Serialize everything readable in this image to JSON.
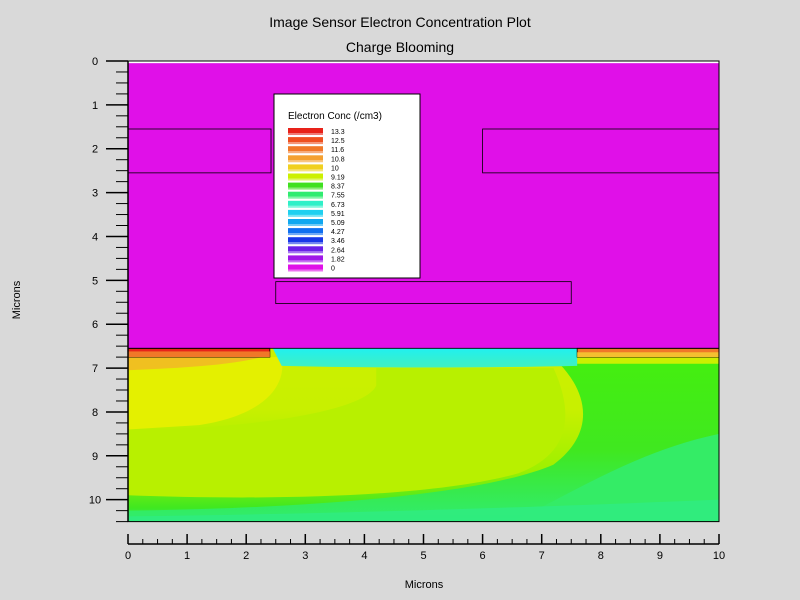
{
  "chart_data": {
    "type": "heatmap",
    "title": "Image Sensor Electron Concentration Plot",
    "subtitle": "Charge Blooming",
    "xlabel": "Microns",
    "ylabel": "Microns",
    "xlim": [
      0,
      10
    ],
    "ylim": [
      0,
      10.6
    ],
    "y_inverted": true,
    "x_ticks": [
      0,
      1,
      2,
      3,
      4,
      5,
      6,
      7,
      8,
      9,
      10
    ],
    "y_ticks": [
      0,
      1,
      2,
      3,
      4,
      5,
      6,
      7,
      8,
      9,
      10
    ],
    "legend": {
      "title": "Electron Conc (/cm3)",
      "placement": "top-center",
      "entries": [
        {
          "label": "13.3",
          "color": "#e8221a"
        },
        {
          "label": "12.5",
          "color": "#ee5020"
        },
        {
          "label": "11.6",
          "color": "#f07828"
        },
        {
          "label": "10.8",
          "color": "#f4a030"
        },
        {
          "label": "10",
          "color": "#f0d020"
        },
        {
          "label": "9.19",
          "color": "#ccf000"
        },
        {
          "label": "8.37",
          "color": "#40e020"
        },
        {
          "label": "7.55",
          "color": "#30ec70"
        },
        {
          "label": "6.73",
          "color": "#30f0c8"
        },
        {
          "label": "5.91",
          "color": "#20d0f0"
        },
        {
          "label": "5.09",
          "color": "#10a8f0"
        },
        {
          "label": "4.27",
          "color": "#1070f0"
        },
        {
          "label": "3.46",
          "color": "#1838e8"
        },
        {
          "label": "2.64",
          "color": "#6a20e8"
        },
        {
          "label": "1.82",
          "color": "#a018e8"
        },
        {
          "label": "0",
          "color": "#e010e8"
        }
      ]
    },
    "regions": {
      "oxide_top": {
        "x": [
          0,
          10
        ],
        "y": [
          0,
          0.05
        ],
        "color": "#ffffff"
      },
      "insulator": {
        "x": [
          0,
          10
        ],
        "y": [
          0.05,
          6.55
        ],
        "color": "#e010e8"
      },
      "substrate": {
        "x": [
          0,
          10
        ],
        "y": [
          6.55,
          10.5
        ]
      },
      "gate_left": {
        "x": [
          0,
          2.42
        ],
        "y": [
          1.55,
          2.55
        ]
      },
      "gate_right": {
        "x": [
          6.0,
          10
        ],
        "y": [
          1.55,
          2.55
        ]
      },
      "gate_center": {
        "x": [
          2.5,
          7.5
        ],
        "y": [
          5.03,
          5.53
        ]
      },
      "implant_left": {
        "x": [
          0,
          2.4
        ],
        "y": [
          6.55,
          6.75
        ]
      },
      "implant_right": {
        "x": [
          7.6,
          10
        ],
        "y": [
          6.55,
          6.75
        ]
      }
    }
  }
}
